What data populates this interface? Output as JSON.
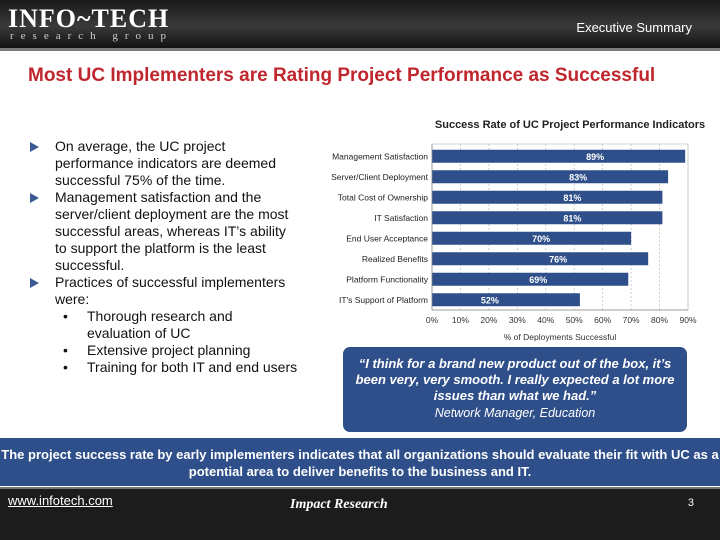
{
  "header": {
    "logo_main": "INFO~TECH",
    "logo_sub": "research group",
    "section_label": "Executive Summary"
  },
  "slide": {
    "title": "Most UC Implementers are Rating Project Performance as Successful"
  },
  "bullets": [
    {
      "text": "On average, the UC project performance indicators are deemed successful 75% of the time."
    },
    {
      "text": "Management satisfaction and the server/client deployment are the most successful areas, whereas IT’s ability to support the platform is the least successful."
    },
    {
      "text": "Practices of successful implementers were:",
      "subs": [
        "Thorough research and evaluation of UC",
        "Extensive project planning",
        "Training for both IT and end users"
      ]
    }
  ],
  "chart_data": {
    "type": "bar",
    "orientation": "horizontal",
    "title": "Success Rate of UC Project Performance Indicators",
    "categories": [
      "Management Satisfaction",
      "Server/Client Deployment",
      "Total Cost of Ownership",
      "IT Satisfaction",
      "End User Acceptance",
      "Realized Benefits",
      "Platform Functionality",
      "IT's Support of Platform"
    ],
    "values": [
      89,
      83,
      81,
      81,
      70,
      76,
      69,
      52
    ],
    "value_labels": [
      "89%",
      "83%",
      "81%",
      "81%",
      "70%",
      "76%",
      "69%",
      "52%"
    ],
    "xlabel": "% of Deployments Successful",
    "xlim": [
      0,
      90
    ],
    "xticks": [
      "0%",
      "10%",
      "20%",
      "30%",
      "40%",
      "50%",
      "60%",
      "70%",
      "80%",
      "90%"
    ],
    "bar_color": "#2f4f8a",
    "grid": true
  },
  "quote": {
    "text": "“I think for a brand new product out of the box, it’s been very, very smooth. I really expected a lot more issues than what we had.”",
    "attribution": "Network Manager, Education"
  },
  "banner": {
    "text": "The project success rate by early implementers indicates that all organizations should evaluate their fit with UC as a potential area to deliver benefits to the business and IT."
  },
  "footer": {
    "link": "www.infotech.com",
    "center": "Impact Research",
    "page": "3"
  }
}
